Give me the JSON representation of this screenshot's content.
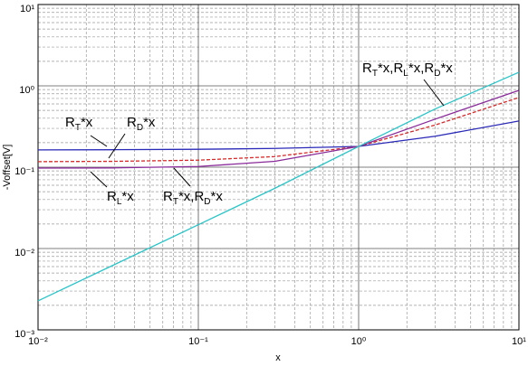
{
  "chart_data": {
    "type": "line",
    "xlabel": "x",
    "ylabel": "-Voffset[V]",
    "xscale": "log",
    "yscale": "log",
    "grid": true,
    "xlim": [
      0.01,
      10
    ],
    "ylim": [
      0.001,
      10
    ],
    "xticks": [
      {
        "value": 0.01,
        "label": "10⁻²"
      },
      {
        "value": 0.1,
        "label": "10⁻¹"
      },
      {
        "value": 1,
        "label": "10⁰"
      },
      {
        "value": 10,
        "label": "10¹"
      }
    ],
    "yticks": [
      {
        "value": 0.001,
        "label": "10⁻³"
      },
      {
        "value": 0.01,
        "label": "10⁻²"
      },
      {
        "value": 0.1,
        "label": "10⁻¹"
      },
      {
        "value": 1,
        "label": "10⁰"
      },
      {
        "value": 10,
        "label": "10¹"
      }
    ],
    "x": [
      0.01,
      0.03,
      0.1,
      0.3,
      1,
      3,
      10
    ],
    "series": [
      {
        "color": "#2a2ab8",
        "linestyle": "solid",
        "values": [
          0.163,
          0.164,
          0.166,
          0.17,
          0.18,
          0.24,
          0.37
        ]
      },
      {
        "color": "#d42a2a",
        "linestyle": "dashed",
        "values": [
          0.117,
          0.118,
          0.122,
          0.135,
          0.18,
          0.33,
          0.72
        ]
      },
      {
        "color": "#8a2a9a",
        "linestyle": "solid",
        "values": [
          0.0975,
          0.098,
          0.102,
          0.118,
          0.18,
          0.39,
          0.88
        ]
      },
      {
        "color": "#2ac4c8",
        "linestyle": "solid",
        "values": [
          0.00227,
          0.00635,
          0.0196,
          0.055,
          0.18,
          0.52,
          1.47
        ]
      }
    ],
    "annotations": [
      {
        "segments": [
          {
            "text": "R"
          },
          {
            "text": "T",
            "sub": true
          },
          {
            "text": "*x"
          }
        ]
      },
      {
        "segments": [
          {
            "text": "R"
          },
          {
            "text": "D",
            "sub": true
          },
          {
            "text": "*x"
          }
        ]
      },
      {
        "segments": [
          {
            "text": "R"
          },
          {
            "text": "L",
            "sub": true
          },
          {
            "text": "*x"
          }
        ]
      },
      {
        "segments": [
          {
            "text": "R"
          },
          {
            "text": "T",
            "sub": true
          },
          {
            "text": "*x,R"
          },
          {
            "text": "D",
            "sub": true
          },
          {
            "text": "*x"
          }
        ]
      },
      {
        "segments": [
          {
            "text": "R"
          },
          {
            "text": "T",
            "sub": true
          },
          {
            "text": "*x,R"
          },
          {
            "text": "L",
            "sub": true
          },
          {
            "text": "*x,R"
          },
          {
            "text": "D",
            "sub": true
          },
          {
            "text": "*x"
          }
        ]
      }
    ]
  }
}
